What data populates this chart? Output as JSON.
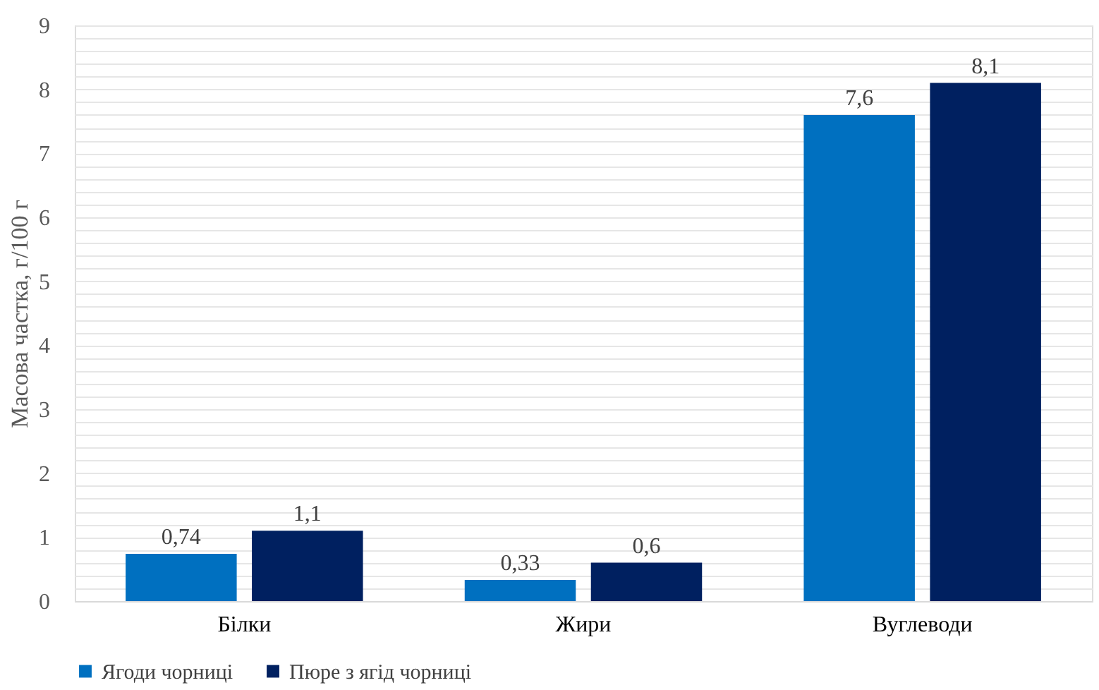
{
  "chart_data": {
    "type": "bar",
    "ylabel": "Масова частка, г/100 г",
    "categories": [
      "Білки",
      "Жири",
      "Вуглеводи"
    ],
    "series": [
      {
        "name": "Ягоди чорниці",
        "color": "#0070c0",
        "values": [
          0.74,
          0.33,
          7.6
        ],
        "value_labels": [
          "0,74",
          "0,33",
          "7,6"
        ]
      },
      {
        "name": "Пюре з ягід чорниці",
        "color": "#002060",
        "values": [
          1.1,
          0.6,
          8.1
        ],
        "value_labels": [
          "1,1",
          "0,6",
          "8,1"
        ]
      }
    ],
    "ylim": [
      0,
      9
    ],
    "yticks": [
      0,
      {
        "value": 0.2,
        "label": null
      },
      {
        "value": 0.4,
        "label": null
      },
      {
        "value": 0.6,
        "label": null
      },
      {
        "value": 0.8,
        "label": null
      },
      1,
      {
        "value": 1.2,
        "label": null
      },
      {
        "value": 1.4,
        "label": null
      },
      {
        "value": 1.6,
        "label": null
      },
      {
        "value": 1.8,
        "label": null
      },
      2,
      {
        "value": 2.2,
        "label": null
      },
      {
        "value": 2.4,
        "label": null
      },
      {
        "value": 2.6,
        "label": null
      },
      {
        "value": 2.8,
        "label": null
      },
      3,
      {
        "value": 3.2,
        "label": null
      },
      {
        "value": 3.4,
        "label": null
      },
      {
        "value": 3.6,
        "label": null
      },
      {
        "value": 3.8,
        "label": null
      },
      4,
      {
        "value": 4.2,
        "label": null
      },
      {
        "value": 4.4,
        "label": null
      },
      {
        "value": 4.6,
        "label": null
      },
      {
        "value": 4.8,
        "label": null
      },
      5,
      {
        "value": 5.2,
        "label": null
      },
      {
        "value": 5.4,
        "label": null
      },
      {
        "value": 5.6,
        "label": null
      },
      {
        "value": 5.8,
        "label": null
      },
      6,
      {
        "value": 6.2,
        "label": null
      },
      {
        "value": 6.4,
        "label": null
      },
      {
        "value": 6.6,
        "label": null
      },
      {
        "value": 6.8,
        "label": null
      },
      7,
      {
        "value": 7.2,
        "label": null
      },
      {
        "value": 7.4,
        "label": null
      },
      {
        "value": 7.6,
        "label": null
      },
      {
        "value": 7.8,
        "label": null
      },
      8,
      {
        "value": 8.2,
        "label": null
      },
      {
        "value": 8.4,
        "label": null
      },
      {
        "value": 8.6,
        "label": null
      },
      {
        "value": 8.8,
        "label": null
      },
      9
    ],
    "grid": "y",
    "legend": "bottom"
  }
}
